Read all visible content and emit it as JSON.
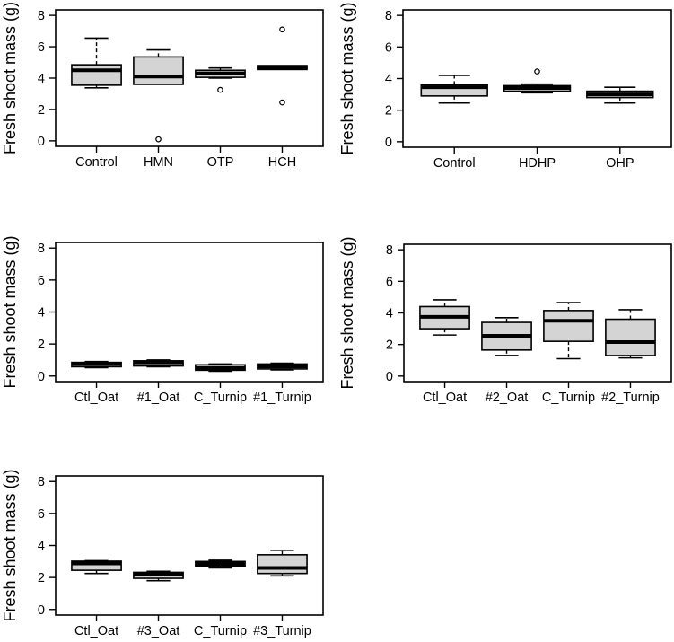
{
  "figure": {
    "background": "#ffffff",
    "colors": {
      "box_fill": "#d4d4d4",
      "stroke": "#000000",
      "outlier_fill": "#ffffff"
    }
  },
  "chart_data": [
    {
      "type": "boxplot",
      "id": "treatments-set-1",
      "position": "top-left",
      "title": "",
      "xlabel": "",
      "ylabel": "Fresh shoot mass (g)",
      "yticks": [
        0,
        2,
        4,
        6,
        8
      ],
      "ylim": [
        -0.35,
        8.35
      ],
      "grid": false,
      "categories": [
        "Control",
        "HMN",
        "OTP",
        "HCH"
      ],
      "boxes": [
        {
          "label": "Control",
          "min": 3.38,
          "q1": 3.55,
          "median": 4.5,
          "q3": 4.85,
          "max": 6.55,
          "outliers": []
        },
        {
          "label": "HMN",
          "min": 3.6,
          "q1": 3.6,
          "median": 4.1,
          "q3": 5.35,
          "max": 5.8,
          "outliers": [
            0.1
          ]
        },
        {
          "label": "OTP",
          "min": 4.0,
          "q1": 4.05,
          "median": 4.3,
          "q3": 4.5,
          "max": 4.65,
          "outliers": [
            3.25
          ]
        },
        {
          "label": "HCH",
          "min": 4.55,
          "q1": 4.55,
          "median": 4.67,
          "q3": 4.8,
          "max": 4.8,
          "outliers": [
            7.1,
            2.45
          ]
        }
      ]
    },
    {
      "type": "boxplot",
      "id": "treatments-set-2",
      "position": "top-right",
      "title": "",
      "xlabel": "",
      "ylabel": "Fresh shoot mass (g)",
      "yticks": [
        0,
        2,
        4,
        6,
        8
      ],
      "ylim": [
        -0.35,
        8.35
      ],
      "grid": false,
      "categories": [
        "Control",
        "HDHP",
        "OHP"
      ],
      "boxes": [
        {
          "label": "Control",
          "min": 2.45,
          "q1": 2.9,
          "median": 3.45,
          "q3": 3.6,
          "max": 4.2,
          "outliers": []
        },
        {
          "label": "HDHP",
          "min": 3.1,
          "q1": 3.2,
          "median": 3.4,
          "q3": 3.55,
          "max": 3.65,
          "outliers": [
            4.45
          ]
        },
        {
          "label": "OHP",
          "min": 2.45,
          "q1": 2.8,
          "median": 3.0,
          "q3": 3.2,
          "max": 3.45,
          "outliers": []
        }
      ]
    },
    {
      "type": "boxplot",
      "id": "oat-turnip-line-1",
      "position": "middle-left",
      "title": "",
      "xlabel": "",
      "ylabel": "Fresh shoot mass (g)",
      "yticks": [
        0,
        2,
        4,
        6,
        8
      ],
      "ylim": [
        -0.35,
        8.35
      ],
      "grid": false,
      "categories": [
        "Ctl_Oat",
        "#1_Oat",
        "C_Turnip",
        "#1_Turnip"
      ],
      "boxes": [
        {
          "label": "Ctl_Oat",
          "min": 0.52,
          "q1": 0.58,
          "median": 0.75,
          "q3": 0.85,
          "max": 0.9,
          "outliers": []
        },
        {
          "label": "#1_Oat",
          "min": 0.58,
          "q1": 0.63,
          "median": 0.85,
          "q3": 0.95,
          "max": 1.0,
          "outliers": []
        },
        {
          "label": "C_Turnip",
          "min": 0.3,
          "q1": 0.36,
          "median": 0.5,
          "q3": 0.7,
          "max": 0.75,
          "outliers": []
        },
        {
          "label": "#1_Turnip",
          "min": 0.38,
          "q1": 0.44,
          "median": 0.6,
          "q3": 0.75,
          "max": 0.8,
          "outliers": []
        }
      ]
    },
    {
      "type": "boxplot",
      "id": "oat-turnip-line-2",
      "position": "middle-right",
      "title": "",
      "xlabel": "",
      "ylabel": "Fresh shoot mass (g)",
      "yticks": [
        0,
        2,
        4,
        6,
        8
      ],
      "ylim": [
        -0.35,
        8.35
      ],
      "grid": false,
      "categories": [
        "Ctl_Oat",
        "#2_Oat",
        "C_Turnip",
        "#2_Turnip"
      ],
      "boxes": [
        {
          "label": "Ctl_Oat",
          "min": 2.6,
          "q1": 3.0,
          "median": 3.75,
          "q3": 4.4,
          "max": 4.83,
          "outliers": []
        },
        {
          "label": "#2_Oat",
          "min": 1.3,
          "q1": 1.65,
          "median": 2.55,
          "q3": 3.4,
          "max": 3.7,
          "outliers": []
        },
        {
          "label": "C_Turnip",
          "min": 1.1,
          "q1": 2.2,
          "median": 3.5,
          "q3": 4.15,
          "max": 4.65,
          "outliers": []
        },
        {
          "label": "#2_Turnip",
          "min": 1.15,
          "q1": 1.3,
          "median": 2.15,
          "q3": 3.6,
          "max": 4.2,
          "outliers": []
        }
      ]
    },
    {
      "type": "boxplot",
      "id": "oat-turnip-line-3",
      "position": "bottom-left",
      "title": "",
      "xlabel": "",
      "ylabel": "Fresh shoot mass (g)",
      "yticks": [
        0,
        2,
        4,
        6,
        8
      ],
      "ylim": [
        -0.35,
        8.35
      ],
      "grid": false,
      "categories": [
        "Ctl_Oat",
        "#3_Oat",
        "C_Turnip",
        "#3_Turnip"
      ],
      "boxes": [
        {
          "label": "Ctl_Oat",
          "min": 2.25,
          "q1": 2.45,
          "median": 2.88,
          "q3": 3.02,
          "max": 3.05,
          "outliers": []
        },
        {
          "label": "#3_Oat",
          "min": 1.8,
          "q1": 1.95,
          "median": 2.2,
          "q3": 2.32,
          "max": 2.38,
          "outliers": []
        },
        {
          "label": "C_Turnip",
          "min": 2.6,
          "q1": 2.72,
          "median": 2.85,
          "q3": 3.0,
          "max": 3.08,
          "outliers": []
        },
        {
          "label": "#3_Turnip",
          "min": 2.1,
          "q1": 2.25,
          "median": 2.6,
          "q3": 3.42,
          "max": 3.7,
          "outliers": []
        }
      ]
    }
  ]
}
